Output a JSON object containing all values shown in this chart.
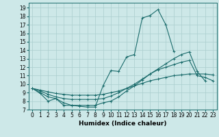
{
  "xlabel": "Humidex (Indice chaleur)",
  "background_color": "#cde8e8",
  "grid_color": "#aacece",
  "line_color": "#1a6b6b",
  "xlim": [
    -0.5,
    23.5
  ],
  "ylim": [
    7,
    19.6
  ],
  "xticks": [
    0,
    1,
    2,
    3,
    4,
    5,
    6,
    7,
    8,
    9,
    10,
    11,
    12,
    13,
    14,
    15,
    16,
    17,
    18,
    19,
    20,
    21,
    22,
    23
  ],
  "yticks": [
    7,
    8,
    9,
    10,
    11,
    12,
    13,
    14,
    15,
    16,
    17,
    18,
    19
  ],
  "series": [
    [
      9.5,
      8.9,
      8.0,
      8.3,
      7.5,
      7.5,
      7.4,
      7.3,
      7.3,
      9.8,
      11.6,
      11.5,
      13.2,
      13.5,
      17.8,
      18.1,
      18.8,
      17.0,
      13.9,
      null,
      null,
      null,
      null,
      null
    ],
    [
      9.5,
      9.0,
      8.5,
      8.3,
      7.8,
      7.5,
      7.5,
      7.5,
      7.5,
      7.8,
      8.0,
      8.5,
      9.2,
      9.8,
      10.5,
      11.2,
      11.8,
      12.4,
      13.0,
      13.5,
      13.8,
      11.5,
      10.4,
      null
    ],
    [
      9.5,
      9.2,
      8.8,
      8.5,
      8.3,
      8.2,
      8.2,
      8.2,
      8.2,
      8.3,
      8.6,
      9.0,
      9.5,
      10.0,
      10.6,
      11.2,
      11.7,
      12.0,
      12.3,
      12.6,
      12.8,
      11.0,
      10.8,
      10.4
    ],
    [
      9.5,
      9.3,
      9.1,
      8.9,
      8.8,
      8.7,
      8.7,
      8.7,
      8.7,
      8.8,
      9.0,
      9.2,
      9.5,
      9.8,
      10.1,
      10.4,
      10.6,
      10.8,
      11.0,
      11.1,
      11.2,
      11.2,
      11.2,
      11.1
    ]
  ],
  "xlabel_fontsize": 6.5,
  "tick_fontsize": 5.5
}
